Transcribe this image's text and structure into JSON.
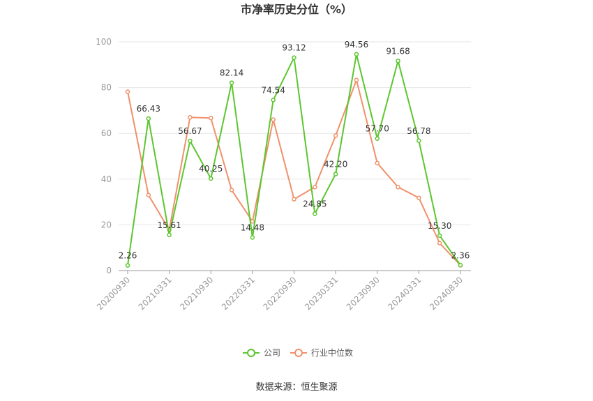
{
  "chart_data": {
    "type": "line",
    "title": "市净率历史分位（%）",
    "source": "数据来源：恒生聚源",
    "ylim": [
      0,
      100
    ],
    "y_ticks": [
      "0",
      "20",
      "40",
      "60",
      "80",
      "100"
    ],
    "x_tick_labels": [
      "20200930",
      "20210331",
      "20210930",
      "20220331",
      "20220930",
      "20230331",
      "20230930",
      "20240331",
      "20240830"
    ],
    "grid": true,
    "legend_position": "bottom",
    "series": [
      {
        "name": "公司",
        "color": "#5cc62f",
        "values": [
          2.26,
          66.43,
          15.61,
          56.67,
          40.25,
          82.14,
          14.48,
          74.54,
          93.12,
          24.85,
          42.2,
          94.56,
          57.7,
          91.68,
          56.78,
          15.3,
          2.36
        ],
        "labels": [
          "2.26",
          "66.43",
          "15.61",
          "56.67",
          "40.25",
          "82.14",
          "14.48",
          "74.54",
          "93.12",
          "24.85",
          "42.20",
          "94.56",
          "57.70",
          "91.68",
          "56.78",
          "15.30",
          "2.36"
        ]
      },
      {
        "name": "行业中位数",
        "color": "#f0916a",
        "values": [
          78.2,
          33.0,
          17.8,
          67.0,
          66.7,
          35.2,
          21.5,
          66.0,
          31.2,
          36.5,
          59.0,
          83.3,
          47.0,
          36.5,
          31.8,
          12.0,
          2.3
        ]
      }
    ]
  }
}
